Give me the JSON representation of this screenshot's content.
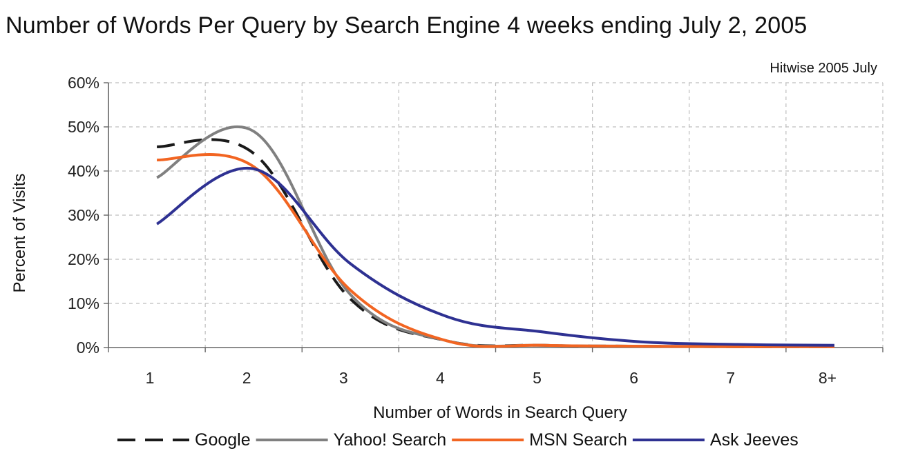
{
  "chart_data": {
    "type": "line",
    "title": "Number of Words Per Query by Search Engine 4 weeks ending July 2, 2005",
    "source_note": "Hitwise 2005 July",
    "xlabel": "Number of Words in Search Query",
    "ylabel": "Percent of Visits",
    "categories": [
      "1",
      "2",
      "3",
      "4",
      "5",
      "6",
      "7",
      "8+"
    ],
    "yticks": [
      "0%",
      "10%",
      "20%",
      "30%",
      "40%",
      "50%",
      "60%"
    ],
    "ylim": [
      0,
      60
    ],
    "grid": true,
    "legend_position": "bottom",
    "series": [
      {
        "name": "Google",
        "color": "#1a1a1a",
        "dash": "dashed",
        "values": [
          45.5,
          44,
          11,
          1.5,
          0.5,
          0.3,
          0.2,
          0.2
        ]
      },
      {
        "name": "Yahoo! Search",
        "color": "#808080",
        "dash": "solid",
        "values": [
          38.5,
          49,
          12,
          1.5,
          0.5,
          0.3,
          0.2,
          0.2
        ]
      },
      {
        "name": "MSN Search",
        "color": "#f26522",
        "dash": "solid",
        "values": [
          42.5,
          41,
          13,
          1.5,
          0.5,
          0.3,
          0.2,
          0.2
        ]
      },
      {
        "name": "Ask Jeeves",
        "color": "#2e3192",
        "dash": "solid",
        "values": [
          28,
          40.5,
          19,
          7,
          3.5,
          1.3,
          0.7,
          0.5
        ]
      }
    ]
  }
}
